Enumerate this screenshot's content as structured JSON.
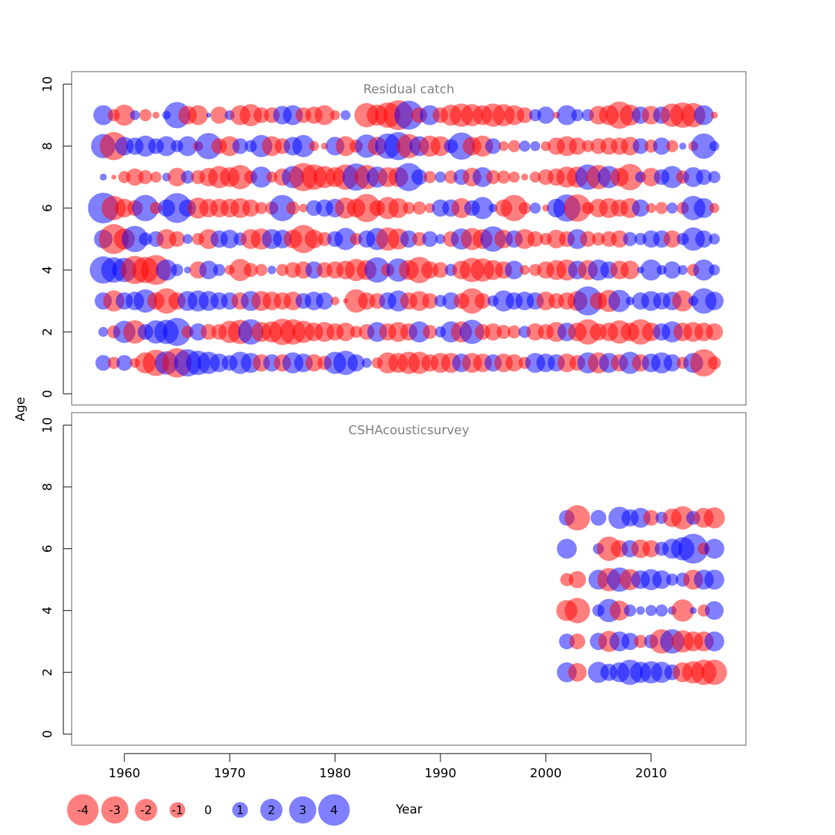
{
  "y_axis_label": "Age",
  "x_axis_label": "Year",
  "colors": {
    "negative": "#ff0000",
    "positive": "#0000ff",
    "frame": "#555555",
    "panel_title": "#808080"
  },
  "legend": {
    "entries": [
      {
        "value": -4,
        "label": "-4"
      },
      {
        "value": -3,
        "label": "-3"
      },
      {
        "value": -2,
        "label": "-2"
      },
      {
        "value": -1,
        "label": "-1"
      },
      {
        "value": 0,
        "label": "0"
      },
      {
        "value": 1,
        "label": "1"
      },
      {
        "value": 2,
        "label": "2"
      },
      {
        "value": 3,
        "label": "3"
      },
      {
        "value": 4,
        "label": "4"
      }
    ]
  },
  "chart_data": [
    {
      "type": "scatter",
      "title": "Residual catch",
      "xlim": [
        1955,
        2019
      ],
      "ylim": [
        0,
        10
      ],
      "x_ticks": [
        1960,
        1970,
        1980,
        1990,
        2000,
        2010
      ],
      "y_ticks": [
        0,
        2,
        4,
        6,
        8,
        10
      ],
      "ages": [
        1,
        2,
        3,
        4,
        5,
        6,
        7,
        8,
        9
      ],
      "years": [
        1958,
        1959,
        1960,
        1961,
        1962,
        1963,
        1964,
        1965,
        1966,
        1967,
        1968,
        1969,
        1970,
        1971,
        1972,
        1973,
        1974,
        1975,
        1976,
        1977,
        1978,
        1979,
        1980,
        1981,
        1982,
        1983,
        1984,
        1985,
        1986,
        1987,
        1988,
        1989,
        1990,
        1991,
        1992,
        1993,
        1994,
        1995,
        1996,
        1997,
        1998,
        1999,
        2000,
        2001,
        2002,
        2003,
        2004,
        2005,
        2006,
        2007,
        2008,
        2009,
        2010,
        2011,
        2012,
        2013,
        2014,
        2015,
        2016
      ],
      "residuals": {
        "1": [
          1.0,
          -0.6,
          1.0,
          -0.4,
          -1.8,
          -2.8,
          2.2,
          -3.5,
          3.0,
          2.4,
          2.0,
          1.4,
          1.0,
          2.0,
          1.6,
          -1.2,
          1.2,
          -1.2,
          1.8,
          1.4,
          -1.2,
          -0.8,
          2.0,
          2.4,
          1.2,
          0.4,
          -0.5,
          -1.8,
          -1.6,
          -2.0,
          -2.0,
          -1.2,
          -1.6,
          -1.6,
          1.4,
          -1.6,
          -1.4,
          1.2,
          -1.4,
          -1.2,
          -0.6,
          1.6,
          1.4,
          1.2,
          -1.4,
          -1.0,
          1.8,
          -1.8,
          1.6,
          -1.2,
          2.0,
          -1.2,
          1.4,
          1.8,
          1.2,
          -0.6,
          1.6,
          -3.0,
          -0.7
        ],
        "2": [
          0.4,
          -0.7,
          2.0,
          -2.2,
          1.0,
          2.2,
          2.4,
          3.2,
          -0.6,
          1.2,
          -1.0,
          -1.0,
          -2.0,
          -2.4,
          2.6,
          -1.6,
          -1.8,
          -2.8,
          -2.6,
          -2.0,
          -1.4,
          -1.6,
          -1.2,
          -1.4,
          -0.6,
          -1.0,
          1.6,
          -1.2,
          -1.6,
          -1.2,
          1.8,
          -0.8,
          0.5,
          1.8,
          -1.8,
          2.4,
          -1.0,
          -1.2,
          -0.8,
          -0.7,
          0.6,
          -1.2,
          -1.0,
          -1.6,
          1.4,
          -1.4,
          -2.6,
          -1.2,
          -1.4,
          -2.2,
          -1.4,
          -2.6,
          -1.4,
          1.2,
          1.8,
          -1.4,
          -1.6,
          -1.4,
          -1.2
        ],
        "3": [
          1.2,
          -1.8,
          1.2,
          1.4,
          2.2,
          -1.2,
          -2.6,
          -1.2,
          1.6,
          1.8,
          1.6,
          1.2,
          1.2,
          -1.2,
          1.6,
          -1.6,
          -1.4,
          -1.2,
          -1.4,
          1.0,
          1.4,
          1.2,
          -0.3,
          -0.1,
          -2.2,
          -1.2,
          -1.0,
          1.2,
          1.8,
          -1.2,
          -1.6,
          -1.0,
          0.6,
          1.2,
          -1.0,
          -2.6,
          -1.0,
          0.5,
          1.8,
          1.2,
          1.4,
          1.2,
          -1.4,
          -1.0,
          -1.2,
          -1.6,
          3.4,
          -1.2,
          -2.0,
          2.0,
          0.3,
          1.2,
          1.6,
          1.2,
          1.4,
          -1.8,
          0.4,
          2.6,
          1.4
        ],
        "4": [
          3.0,
          2.6,
          2.4,
          -3.2,
          -2.8,
          -3.6,
          1.8,
          0.6,
          0.2,
          -1.2,
          1.4,
          0.6,
          -0.4,
          -2.0,
          -0.8,
          -0.6,
          0.3,
          -0.6,
          -1.0,
          -1.2,
          1.2,
          -1.0,
          -1.2,
          -1.4,
          -2.0,
          -1.6,
          2.6,
          -0.7,
          2.2,
          -1.6,
          -2.8,
          -1.2,
          -1.0,
          0.6,
          -1.4,
          -2.4,
          -2.2,
          -1.6,
          -1.2,
          1.4,
          -0.4,
          -0.6,
          -1.2,
          -1.6,
          -1.8,
          1.4,
          -1.6,
          1.8,
          1.2,
          -1.4,
          -1.4,
          0.2,
          1.8,
          0.4,
          1.2,
          0.4,
          -0.6,
          1.8,
          0.5
        ],
        "5": [
          1.4,
          -3.6,
          -1.8,
          2.8,
          0.7,
          1.0,
          -1.6,
          -1.0,
          0.4,
          -0.6,
          -1.6,
          1.2,
          1.4,
          0.7,
          -1.6,
          -1.8,
          1.6,
          1.4,
          -1.4,
          -3.2,
          -1.4,
          -0.8,
          1.0,
          2.0,
          -0.6,
          1.2,
          2.0,
          -2.2,
          -1.8,
          1.2,
          -0.8,
          1.0,
          0.4,
          -1.0,
          1.8,
          -2.0,
          -1.6,
          2.6,
          -1.4,
          1.2,
          -1.6,
          -1.0,
          -0.6,
          -1.4,
          -1.0,
          1.6,
          -1.0,
          -0.7,
          -1.0,
          -1.2,
          0.8,
          0.6,
          1.2,
          1.2,
          -1.2,
          0.6,
          2.2,
          1.2,
          0.5
        ],
        "6": [
          3.8,
          -2.4,
          -1.4,
          -1.0,
          2.8,
          -0.6,
          1.2,
          3.6,
          1.2,
          -1.8,
          -1.4,
          -1.4,
          -1.4,
          -1.6,
          -1.2,
          -0.6,
          -0.7,
          2.8,
          -0.7,
          -0.3,
          1.0,
          1.2,
          1.4,
          -1.8,
          -1.4,
          -3.2,
          -1.0,
          -2.0,
          -1.6,
          -0.6,
          -0.7,
          -0.4,
          1.2,
          1.2,
          -1.6,
          1.0,
          2.0,
          0.3,
          -1.2,
          -2.8,
          -0.6,
          0.5,
          -0.2,
          1.4,
          3.0,
          -3.0,
          -0.6,
          -1.4,
          -1.6,
          -1.2,
          -1.6,
          1.2,
          -0.4,
          -0.6,
          0.5,
          -0.6,
          2.4,
          1.6,
          -0.4
        ],
        "7": [
          0.2,
          -0.1,
          -0.6,
          -1.2,
          -0.8,
          -0.5,
          0.3,
          -1.4,
          0.7,
          -0.8,
          -1.4,
          -2.0,
          -1.6,
          -2.4,
          -0.7,
          1.8,
          -0.5,
          -1.2,
          2.0,
          -3.2,
          -2.6,
          -2.0,
          -1.6,
          -2.6,
          3.0,
          -2.4,
          1.8,
          -1.6,
          -1.6,
          3.2,
          1.0,
          -0.6,
          0.5,
          -0.7,
          1.0,
          -1.4,
          1.6,
          -0.8,
          -0.7,
          -0.5,
          -0.2,
          -0.5,
          -1.0,
          -1.2,
          -1.8,
          -1.8,
          2.6,
          -2.4,
          2.0,
          -1.4,
          -2.8,
          0.5,
          -1.4,
          1.0,
          2.0,
          -0.7,
          1.6,
          1.0,
          0.6
        ],
        "8": [
          2.4,
          -3.2,
          1.4,
          1.2,
          1.8,
          1.0,
          1.6,
          0.6,
          1.6,
          -0.4,
          2.8,
          -1.0,
          -1.6,
          1.0,
          0.6,
          2.0,
          -1.6,
          -1.0,
          1.4,
          2.0,
          -0.4,
          -0.2,
          1.4,
          -1.6,
          -0.7,
          2.2,
          -1.4,
          2.6,
          3.2,
          -2.4,
          1.6,
          -1.8,
          -1.6,
          0.8,
          3.0,
          -1.4,
          -1.8,
          1.0,
          -0.4,
          -0.6,
          0.5,
          0.4,
          -0.4,
          -1.2,
          -1.6,
          -1.2,
          -0.6,
          -1.0,
          -1.2,
          -1.2,
          -1.4,
          1.0,
          -0.7,
          1.2,
          -0.6,
          0.2,
          -0.4,
          2.6,
          0.4
        ],
        "9": [
          1.6,
          -0.6,
          -1.8,
          0.4,
          -0.6,
          -0.2,
          0.3,
          2.8,
          -1.4,
          -1.6,
          0.1,
          -1.2,
          0.4,
          -1.6,
          -2.0,
          -1.0,
          -1.0,
          1.4,
          1.6,
          -1.0,
          -1.2,
          -1.6,
          -0.4,
          0.4,
          0.0,
          -2.4,
          -1.8,
          -2.6,
          -3.6,
          3.4,
          -1.0,
          1.6,
          -1.0,
          -1.8,
          -2.2,
          -2.0,
          -1.6,
          -2.2,
          -2.0,
          -1.6,
          -1.0,
          0.6,
          1.2,
          -0.2,
          1.6,
          0.6,
          0.6,
          -1.4,
          -1.6,
          -3.0,
          -1.8,
          1.2,
          -1.4,
          1.2,
          -2.2,
          -2.6,
          -2.4,
          1.6,
          -0.2
        ]
      }
    },
    {
      "type": "scatter",
      "title": "CSHAcousticsurvey",
      "xlim": [
        1955,
        2019
      ],
      "ylim": [
        0,
        10
      ],
      "x_ticks": [
        1960,
        1970,
        1980,
        1990,
        2000,
        2010
      ],
      "y_ticks": [
        0,
        2,
        4,
        6,
        8,
        10
      ],
      "ages": [
        2,
        3,
        4,
        5,
        6,
        7
      ],
      "years": [
        2002,
        2003,
        2004,
        2005,
        2006,
        2007,
        2008,
        2009,
        2010,
        2011,
        2012,
        2013,
        2014,
        2015,
        2016
      ],
      "residuals": {
        "2": [
          1.6,
          -1.4,
          null,
          1.8,
          1.2,
          1.6,
          2.6,
          1.8,
          2.0,
          1.8,
          1.0,
          -1.6,
          -2.0,
          -2.6,
          -2.6
        ],
        "3": [
          1.0,
          -1.0,
          null,
          1.2,
          -1.8,
          1.6,
          1.2,
          -0.7,
          0.8,
          -2.4,
          2.4,
          -2.0,
          -1.6,
          -1.6,
          1.6
        ],
        "4": [
          -1.8,
          -2.6,
          null,
          0.6,
          2.2,
          -1.6,
          0.6,
          0.3,
          0.5,
          0.6,
          0.3,
          -2.0,
          0.2,
          -0.6,
          1.4
        ],
        "5": [
          -0.7,
          -1.2,
          null,
          1.6,
          -2.2,
          2.4,
          -1.8,
          1.4,
          1.8,
          1.4,
          0.6,
          0.8,
          -1.6,
          1.6,
          1.6
        ],
        "6": [
          1.6,
          null,
          null,
          0.5,
          -2.4,
          -1.2,
          1.2,
          -1.4,
          -1.2,
          0.8,
          1.6,
          2.2,
          3.6,
          -0.6,
          1.6
        ],
        "7": [
          1.0,
          -2.6,
          null,
          1.0,
          null,
          2.0,
          1.2,
          1.6,
          -1.0,
          0.6,
          -1.4,
          -2.2,
          0.8,
          -1.6,
          -1.8
        ]
      }
    }
  ]
}
